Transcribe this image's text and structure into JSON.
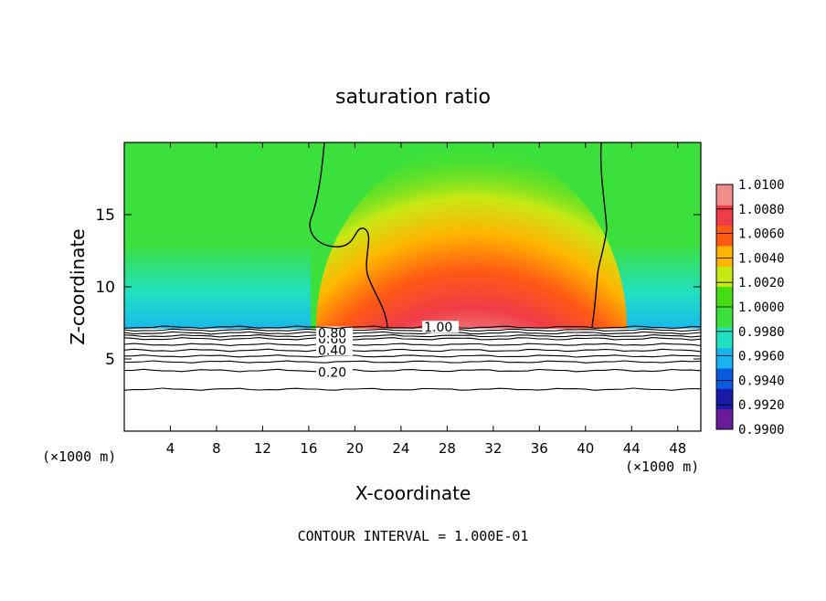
{
  "chart_data": {
    "type": "heatmap",
    "title": "saturation ratio",
    "xlabel": "X-coordinate",
    "ylabel": "Z-coordinate",
    "x_unit_left": "(×1000 m)",
    "x_unit_right": "(×1000 m)",
    "footer": "CONTOUR INTERVAL = 1.000E-01",
    "xlim": [
      0,
      50
    ],
    "ylim": [
      0,
      20
    ],
    "x_ticks": [
      4,
      8,
      12,
      16,
      20,
      24,
      28,
      32,
      36,
      40,
      44,
      48
    ],
    "y_ticks": [
      5,
      10,
      15
    ],
    "colorbar": {
      "min": 0.99,
      "max": 1.01,
      "tick_labels": [
        "0.9900",
        "0.9920",
        "0.9940",
        "0.9960",
        "0.9980",
        "1.0000",
        "1.0020",
        "1.0040",
        "1.0060",
        "1.0080",
        "1.0100"
      ],
      "colors": [
        "#6a1b9a",
        "#1a1aa8",
        "#0a5ae0",
        "#19b4f0",
        "#20e0c0",
        "#3ce03c",
        "#46dc14",
        "#c8e814",
        "#ffb400",
        "#ff5a14",
        "#f03c46",
        "#f08c8c"
      ]
    },
    "contours": [
      {
        "level": 0.2,
        "label": "0.20",
        "z": 4.2
      },
      {
        "level": 0.4,
        "label": "0.40",
        "z": 5.6
      },
      {
        "level": 0.6,
        "label": "0.60",
        "z": 6.4
      },
      {
        "level": 0.8,
        "label": "0.80",
        "z": 6.8
      },
      {
        "level": 1.0,
        "label": "1.00",
        "z": 7.2
      }
    ],
    "extra_contour_z": [
      2.9,
      4.8,
      5.2,
      6.0,
      6.6,
      7.0
    ],
    "ground_z": 7.1,
    "supersaturated_region": {
      "x_range": [
        23,
        40
      ],
      "peak_x": 30,
      "peak_z": 13.2
    }
  }
}
